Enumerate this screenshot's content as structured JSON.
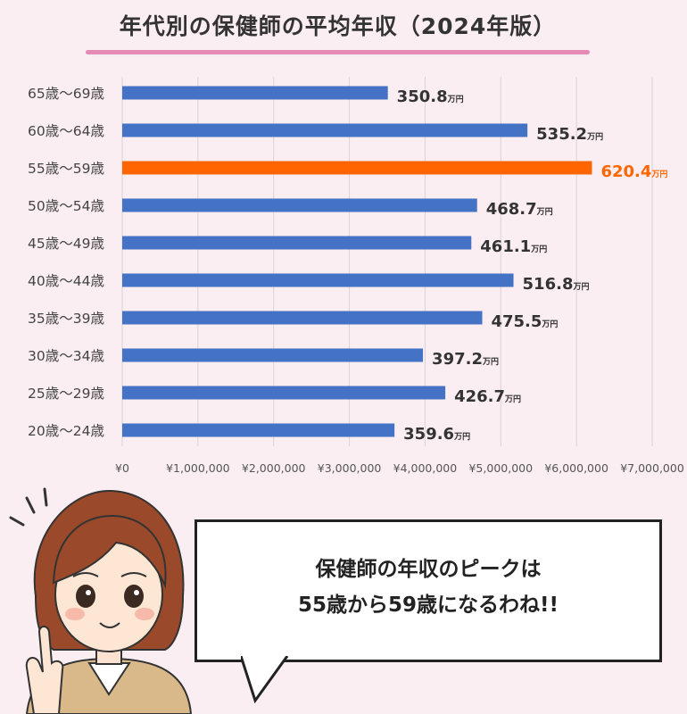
{
  "title": "年代別の保健師の平均年収（2024年版）",
  "chart_data": {
    "type": "bar",
    "orientation": "horizontal",
    "title": "年代別の保健師の平均年収（2024年版）",
    "categories": [
      "65歳〜69歳",
      "60歳〜64歳",
      "55歳〜59歳",
      "50歳〜54歳",
      "45歳〜49歳",
      "40歳〜44歳",
      "35歳〜39歳",
      "30歳〜34歳",
      "25歳〜29歳",
      "20歳〜24歳"
    ],
    "values": [
      3508000,
      5352000,
      6204000,
      4687000,
      4611000,
      5168000,
      4755000,
      3972000,
      4267000,
      3596000
    ],
    "data_labels": [
      "350.8",
      "535.2",
      "620.4",
      "468.7",
      "461.1",
      "516.8",
      "475.5",
      "397.2",
      "426.7",
      "359.6"
    ],
    "data_label_unit": "万円",
    "highlight_index": 2,
    "xlim": [
      0,
      7000000
    ],
    "x_ticks": [
      "¥0",
      "¥1,000,000",
      "¥2,000,000",
      "¥3,000,000",
      "¥4,000,000",
      "¥5,000,000",
      "¥6,000,000",
      "¥7,000,000"
    ],
    "grid": true,
    "colors": {
      "bar": "#4472c4",
      "highlight": "#ff6600",
      "label": "#333333",
      "highlight_label": "#ff6600"
    }
  },
  "speech": {
    "line1": "保健師の年収のピークは",
    "line2": "55歳から59歳になるわね!!"
  }
}
